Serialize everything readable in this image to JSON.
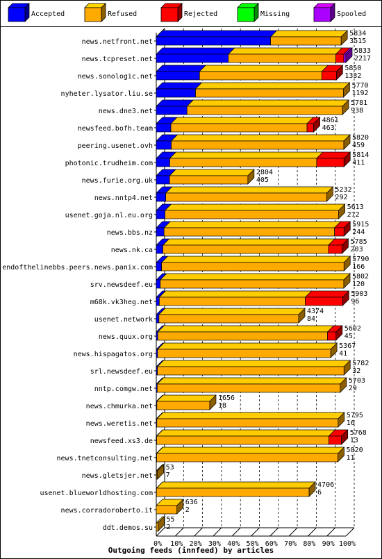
{
  "chart_data": {
    "type": "bar",
    "orientation": "horizontal",
    "stacked": true,
    "title": "Outgoing feeds (innfeed) by articles",
    "legend_position": "top",
    "xlim": [
      0,
      100
    ],
    "x_unit": "percent",
    "grid": true,
    "x_ticks": [
      "0%",
      "10%",
      "20%",
      "30%",
      "40%",
      "50%",
      "60%",
      "70%",
      "80%",
      "90%",
      "100%"
    ],
    "series": [
      {
        "name": "Accepted",
        "color": "#0000ff"
      },
      {
        "name": "Refused",
        "color": "#ffaa00"
      },
      {
        "name": "Rejected",
        "color": "#ff0000"
      },
      {
        "name": "Missing",
        "color": "#00ff00"
      },
      {
        "name": "Spooled",
        "color": "#aa00ff"
      }
    ],
    "feeds": [
      {
        "name": "news.netfront.net",
        "total": "5834",
        "accepted": "3515",
        "values": [
          60.3,
          37.2,
          0,
          0,
          0
        ]
      },
      {
        "name": "news.tcpreset.net",
        "total": "5833",
        "accepted": "2217",
        "values": [
          38.0,
          56.7,
          4.2,
          0,
          1.1
        ]
      },
      {
        "name": "news.sonologic.net",
        "total": "5850",
        "accepted": "1332",
        "values": [
          22.8,
          64.5,
          7.7,
          0,
          0
        ]
      },
      {
        "name": "nyheter.lysator.liu.se",
        "total": "5770",
        "accepted": "1192",
        "values": [
          20.7,
          78.0,
          0,
          0,
          0
        ]
      },
      {
        "name": "news.dne3.net",
        "total": "5781",
        "accepted": "938",
        "values": [
          16.2,
          82.0,
          0,
          0,
          0
        ]
      },
      {
        "name": "newsfeed.bofh.team",
        "total": "4861",
        "accepted": "463",
        "values": [
          7.7,
          71.8,
          3.5,
          0,
          0
        ]
      },
      {
        "name": "peering.usenet.ovh",
        "total": "5820",
        "accepted": "459",
        "values": [
          7.9,
          91.0,
          0,
          0,
          0
        ]
      },
      {
        "name": "photonic.trudheim.com",
        "total": "5814",
        "accepted": "411",
        "values": [
          7.1,
          77.5,
          14.4,
          0,
          0
        ]
      },
      {
        "name": "news.furie.org.uk",
        "total": "2804",
        "accepted": "405",
        "values": [
          7.0,
          41.3,
          0,
          0,
          0
        ]
      },
      {
        "name": "news.nntp4.net",
        "total": "5232",
        "accepted": "292",
        "values": [
          5.0,
          84.9,
          0,
          0,
          0
        ]
      },
      {
        "name": "usenet.goja.nl.eu.org",
        "total": "5613",
        "accepted": "272",
        "values": [
          4.6,
          91.6,
          0,
          0,
          0
        ]
      },
      {
        "name": "news.bbs.nz",
        "total": "5915",
        "accepted": "244",
        "values": [
          4.1,
          89.9,
          5.0,
          0,
          0
        ]
      },
      {
        "name": "news.nk.ca",
        "total": "5785",
        "accepted": "203",
        "values": [
          3.5,
          87.3,
          7.2,
          0,
          0
        ]
      },
      {
        "name": "endofthelinebbs.peers.news.panix.com",
        "total": "5790",
        "accepted": "166",
        "values": [
          2.8,
          96.2,
          0,
          0,
          0
        ]
      },
      {
        "name": "srv.newsdeef.eu",
        "total": "5802",
        "accepted": "120",
        "values": [
          2.1,
          96.8,
          0,
          0,
          0
        ]
      },
      {
        "name": "m68k.vk3heg.net",
        "total": "5903",
        "accepted": "96",
        "values": [
          1.6,
          77.0,
          19.7,
          0,
          0
        ]
      },
      {
        "name": "usenet.network",
        "total": "4374",
        "accepted": "84",
        "values": [
          1.4,
          73.7,
          0,
          0,
          0
        ]
      },
      {
        "name": "news.quux.org",
        "total": "5602",
        "accepted": "45",
        "values": [
          0.8,
          89.5,
          4.5,
          0,
          0
        ]
      },
      {
        "name": "news.hispagatos.org",
        "total": "5367",
        "accepted": "41",
        "values": [
          0.7,
          91.3,
          0,
          0,
          0
        ]
      },
      {
        "name": "srl.newsdeef.eu",
        "total": "5782",
        "accepted": "32",
        "values": [
          0.6,
          98.4,
          0,
          0,
          0
        ]
      },
      {
        "name": "nntp.comgw.net",
        "total": "5703",
        "accepted": "29",
        "values": [
          0.5,
          96.5,
          0,
          0,
          0
        ]
      },
      {
        "name": "news.chmurka.net",
        "total": "1656",
        "accepted": "18",
        "values": [
          0.3,
          27.9,
          0,
          0,
          0
        ]
      },
      {
        "name": "news.weretis.net",
        "total": "5795",
        "accepted": "16",
        "values": [
          0.3,
          95.6,
          0,
          0,
          0
        ]
      },
      {
        "name": "newsfeed.xs3.de",
        "total": "5768",
        "accepted": "13",
        "values": [
          0.2,
          90.8,
          6.7,
          0,
          0
        ]
      },
      {
        "name": "news.tnetconsulting.net",
        "total": "5820",
        "accepted": "11",
        "values": [
          0.2,
          95.6,
          0,
          0,
          0
        ]
      },
      {
        "name": "news.gletsjer.net",
        "total": "53",
        "accepted": "7",
        "values": [
          0.1,
          0.5,
          0,
          0,
          0
        ]
      },
      {
        "name": "usenet.blueworldhosting.com",
        "total": "4706",
        "accepted": "6",
        "values": [
          0.1,
          80.5,
          0,
          0,
          0
        ]
      },
      {
        "name": "news.corradoroberto.it",
        "total": "636",
        "accepted": "2",
        "values": [
          0.0,
          10.9,
          0,
          0,
          0
        ]
      },
      {
        "name": "ddt.demos.su",
        "total": "55",
        "accepted": "2",
        "values": [
          0.0,
          0.9,
          0,
          0,
          0
        ]
      }
    ]
  }
}
